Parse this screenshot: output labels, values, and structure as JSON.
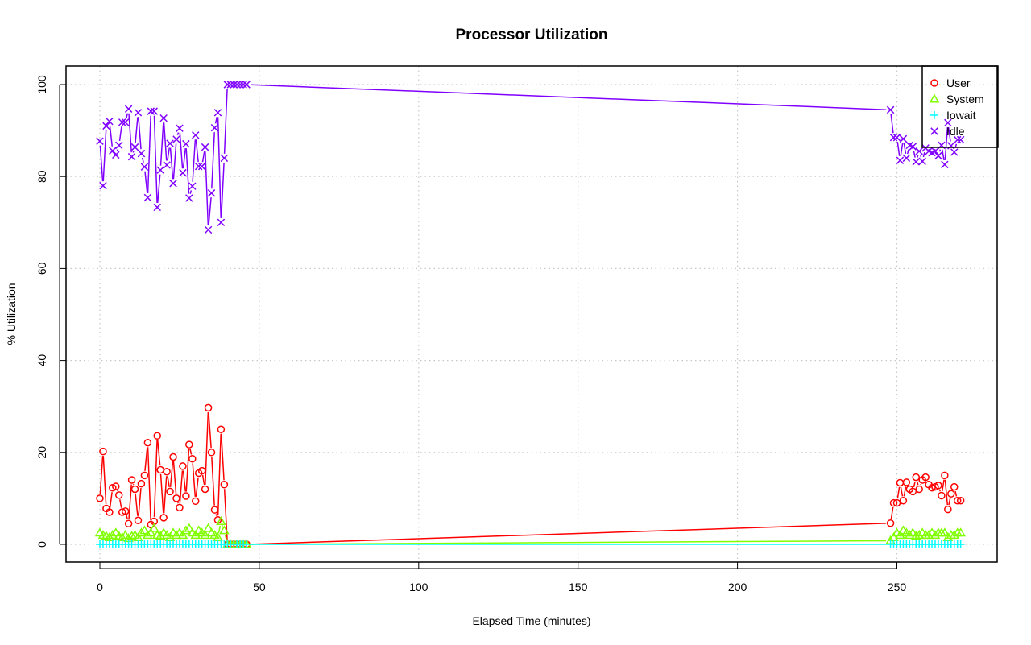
{
  "chart_data": {
    "type": "line",
    "title": "Processor Utilization",
    "xlabel": "Elapsed Time (minutes)",
    "ylabel": "% Utilization",
    "xlim": [
      0,
      280
    ],
    "ylim": [
      0,
      100
    ],
    "xticks": [
      0,
      50,
      100,
      150,
      200,
      250
    ],
    "yticks": [
      0,
      20,
      40,
      60,
      80,
      100
    ],
    "grid": true,
    "legend_position": "top-right",
    "series": [
      {
        "name": "User",
        "color": "#ff0000",
        "marker": "circle",
        "x": [
          0,
          1,
          2,
          3,
          4,
          5,
          6,
          7,
          8,
          9,
          10,
          11,
          12,
          13,
          14,
          15,
          16,
          17,
          18,
          19,
          20,
          21,
          22,
          23,
          24,
          25,
          26,
          27,
          28,
          29,
          30,
          31,
          32,
          33,
          34,
          35,
          36,
          37,
          38,
          39,
          40,
          41,
          42,
          43,
          44,
          45,
          46,
          248,
          249,
          250,
          251,
          252,
          253,
          254,
          255,
          256,
          257,
          258,
          259,
          260,
          261,
          262,
          263,
          264,
          265,
          266,
          267,
          268,
          269,
          270
        ],
        "y": [
          10,
          20.2,
          7.8,
          7,
          12.3,
          12.6,
          10.7,
          7,
          7.2,
          4.5,
          14,
          12,
          5.2,
          13.2,
          15,
          22.1,
          4.3,
          5,
          23.6,
          16.2,
          5.8,
          15.8,
          11.5,
          19,
          10,
          8,
          17,
          10.5,
          21.7,
          18.6,
          9.4,
          15.5,
          16,
          12,
          29.7,
          20,
          7.5,
          5.3,
          25,
          13,
          0,
          0,
          0,
          0,
          0,
          0,
          0,
          4.6,
          9,
          9,
          13.4,
          9.5,
          13.5,
          12,
          11.5,
          14.6,
          12,
          14,
          14.6,
          13,
          12.3,
          12.5,
          12.8,
          10.6,
          15,
          7.6,
          11,
          12.5,
          9.5,
          9.5
        ]
      },
      {
        "name": "System",
        "color": "#80ff00",
        "marker": "triangle",
        "x": [
          0,
          1,
          2,
          3,
          4,
          5,
          6,
          7,
          8,
          9,
          10,
          11,
          12,
          13,
          14,
          15,
          16,
          17,
          18,
          19,
          20,
          21,
          22,
          23,
          24,
          25,
          26,
          27,
          28,
          29,
          30,
          31,
          32,
          33,
          34,
          35,
          36,
          37,
          38,
          39,
          40,
          41,
          42,
          43,
          44,
          45,
          46,
          248,
          249,
          250,
          251,
          252,
          253,
          254,
          255,
          256,
          257,
          258,
          259,
          260,
          261,
          262,
          263,
          264,
          265,
          266,
          267,
          268,
          269,
          270
        ],
        "y": [
          2.5,
          2,
          1.8,
          1.5,
          2,
          2.5,
          1.8,
          1.5,
          2,
          1.3,
          1.8,
          2,
          1.5,
          2.5,
          3,
          2,
          2.5,
          3.5,
          2,
          1.8,
          2.5,
          2,
          1.5,
          2.5,
          2,
          2.5,
          2,
          3,
          3.5,
          2.5,
          2,
          3,
          2.5,
          2,
          3.5,
          2.5,
          2,
          1.5,
          5,
          3,
          0,
          0,
          0,
          0,
          0,
          0,
          0,
          0.8,
          1.5,
          2.5,
          2,
          3,
          2.5,
          2,
          2.5,
          1.8,
          2,
          2.5,
          2,
          2,
          2.5,
          2,
          2.5,
          2.5,
          2.5,
          1.5,
          2,
          2,
          2.5,
          2.5
        ]
      },
      {
        "name": "Iowait",
        "color": "#00ffff",
        "marker": "plus",
        "x": [
          0,
          1,
          2,
          3,
          4,
          5,
          6,
          7,
          8,
          9,
          10,
          11,
          12,
          13,
          14,
          15,
          16,
          17,
          18,
          19,
          20,
          21,
          22,
          23,
          24,
          25,
          26,
          27,
          28,
          29,
          30,
          31,
          32,
          33,
          34,
          35,
          36,
          37,
          38,
          39,
          40,
          41,
          42,
          43,
          44,
          45,
          46,
          248,
          249,
          250,
          251,
          252,
          253,
          254,
          255,
          256,
          257,
          258,
          259,
          260,
          261,
          262,
          263,
          264,
          265,
          266,
          267,
          268,
          269,
          270
        ],
        "y": [
          0,
          0,
          0,
          0,
          0,
          0,
          0,
          0,
          0,
          0,
          0,
          0,
          0,
          0,
          0,
          0,
          0,
          0,
          0,
          0,
          0,
          0,
          0,
          0,
          0,
          0,
          0,
          0,
          0,
          0,
          0,
          0,
          0,
          0,
          0,
          0,
          0,
          0,
          0,
          0,
          0,
          0,
          0,
          0,
          0,
          0,
          0,
          0,
          0,
          0,
          0,
          0,
          0,
          0,
          0,
          0,
          0,
          0,
          0,
          0,
          0,
          0,
          0,
          0,
          0,
          0,
          0,
          0,
          0,
          0
        ]
      },
      {
        "name": "Idle",
        "color": "#8000ff",
        "marker": "cross",
        "x": [
          0,
          1,
          2,
          3,
          4,
          5,
          6,
          7,
          8,
          9,
          10,
          11,
          12,
          13,
          14,
          15,
          16,
          17,
          18,
          19,
          20,
          21,
          22,
          23,
          24,
          25,
          26,
          27,
          28,
          29,
          30,
          31,
          32,
          33,
          34,
          35,
          36,
          37,
          38,
          39,
          40,
          41,
          42,
          43,
          44,
          45,
          46,
          248,
          249,
          250,
          251,
          252,
          253,
          254,
          255,
          256,
          257,
          258,
          259,
          260,
          261,
          262,
          263,
          264,
          265,
          266,
          267,
          268,
          269,
          270
        ],
        "y": [
          87.7,
          78,
          91,
          92,
          85.6,
          84.7,
          86.8,
          91.8,
          91.8,
          94.7,
          84.3,
          86.4,
          93.9,
          85,
          82.1,
          75.4,
          94.2,
          94.2,
          73.3,
          81.4,
          92.7,
          82.5,
          87.2,
          78.5,
          88.1,
          90.5,
          80.8,
          87.1,
          75.3,
          77.9,
          89,
          82.2,
          82.2,
          86.4,
          68.4,
          76.4,
          90.6,
          93.9,
          70,
          84,
          100,
          100,
          100,
          100,
          100,
          100,
          100,
          94.5,
          88.5,
          88.5,
          83.5,
          88.2,
          84,
          86.8,
          86.5,
          83.2,
          85.5,
          83.3,
          86.2,
          85.5,
          85.2,
          85.5,
          84.5,
          86.8,
          82.6,
          91.7,
          86.7,
          85.3,
          88,
          88
        ]
      }
    ]
  }
}
